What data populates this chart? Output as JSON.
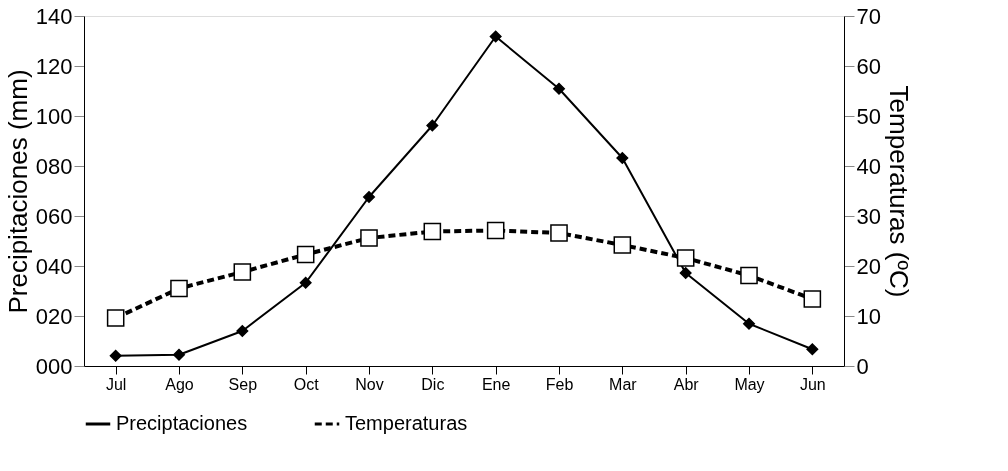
{
  "chart_data": {
    "type": "line",
    "categories": [
      "Jul",
      "Ago",
      "Sep",
      "Oct",
      "Nov",
      "Dic",
      "Ene",
      "Feb",
      "Mar",
      "Abr",
      "May",
      "Jun"
    ],
    "ylabel": "Precipitaciones (mm)",
    "y2label": "Temperaturas (ºC)",
    "ylim": [
      0,
      140
    ],
    "yticks": [
      {
        "value": 0,
        "label": "000"
      },
      {
        "value": 20,
        "label": "020"
      },
      {
        "value": 40,
        "label": "040"
      },
      {
        "value": 60,
        "label": "060"
      },
      {
        "value": 80,
        "label": "080"
      },
      100,
      120,
      140
    ],
    "y2lim": [
      0,
      70
    ],
    "y2ticks": [
      0,
      10,
      20,
      30,
      40,
      50,
      60,
      70
    ],
    "grid": false,
    "legend": "bottom",
    "series": [
      {
        "name": "Preciptaciones",
        "color": "#000000",
        "marker": "diamond",
        "line_style": "solid",
        "values": [
          4.1,
          4.5,
          14.0,
          33.3,
          67.6,
          96.2,
          131.8,
          110.9,
          83.2,
          37.2,
          16.9,
          6.7
        ]
      },
      {
        "name": "Temperaturas",
        "color": "#000000",
        "marker": "square",
        "line_style": "dashed",
        "axis": "y2",
        "values": [
          9.6,
          15.5,
          18.8,
          22.3,
          25.6,
          26.9,
          27.1,
          26.6,
          24.2,
          21.6,
          18.1,
          13.4
        ]
      }
    ]
  }
}
